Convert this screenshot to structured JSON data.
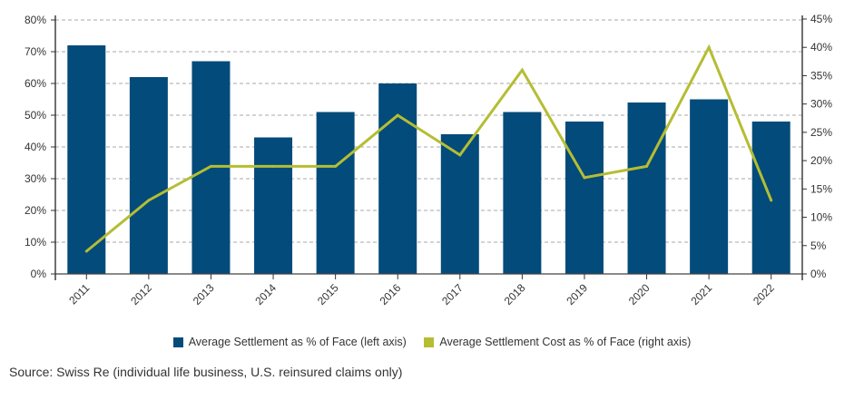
{
  "chart_data": {
    "type": "bar+line",
    "categories": [
      "2011",
      "2012",
      "2013",
      "2014",
      "2015",
      "2016",
      "2017",
      "2018",
      "2019",
      "2020",
      "2021",
      "2022"
    ],
    "series": [
      {
        "name": "Average Settlement as % of Face (left axis)",
        "type": "bar",
        "axis": "left",
        "color": "#034b7a",
        "values": [
          72,
          62,
          67,
          43,
          51,
          60,
          44,
          51,
          48,
          54,
          55,
          48
        ]
      },
      {
        "name": "Average Settlement Cost as % of Face (right axis)",
        "type": "line",
        "axis": "right",
        "color": "#b5bd33",
        "values": [
          4,
          13,
          19,
          19,
          19,
          28,
          21,
          36,
          17,
          19,
          40,
          13
        ]
      }
    ],
    "left_axis": {
      "range": [
        0,
        80
      ],
      "ticks": [
        "0%",
        "10%",
        "20%",
        "30%",
        "40%",
        "50%",
        "60%",
        "70%",
        "80%"
      ]
    },
    "right_axis": {
      "range": [
        0,
        45
      ],
      "ticks": [
        "0%",
        "5%",
        "10%",
        "15%",
        "20%",
        "25%",
        "30%",
        "35%",
        "40%",
        "45%"
      ]
    },
    "grid": "horizontal dashed",
    "legend_position": "bottom"
  },
  "source": "Source: Swiss Re (individual life business, U.S. reinsured claims only)"
}
